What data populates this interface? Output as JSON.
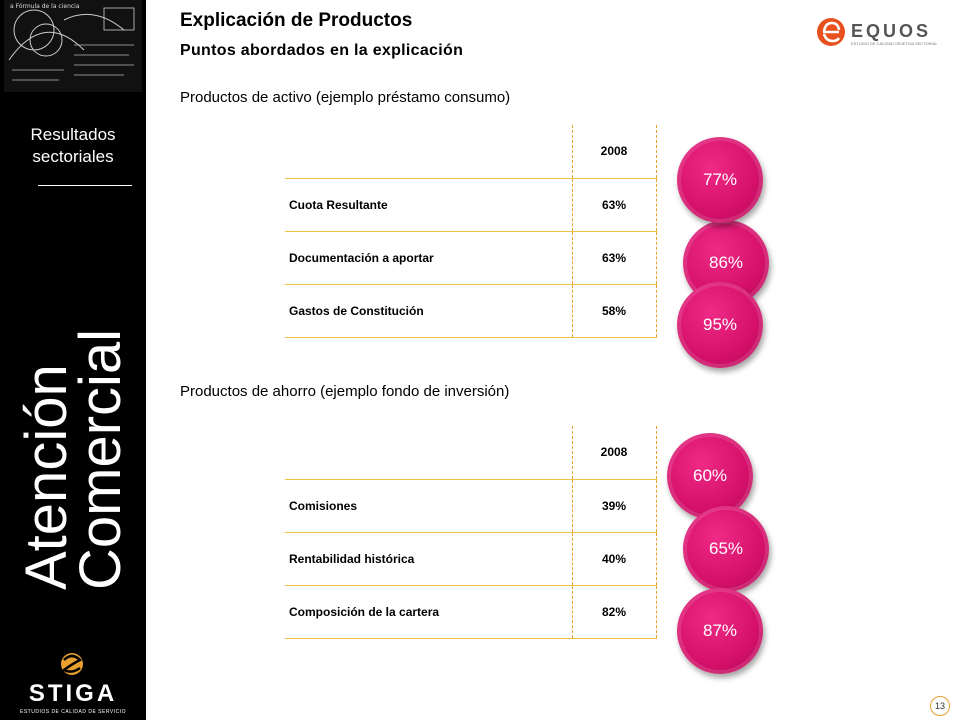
{
  "sidebar": {
    "section_label_line1": "Resultados",
    "section_label_line2": "sectoriales",
    "vertical_title_line1": "Atención",
    "vertical_title_line2": "Comercial",
    "logo_text": "STIGA",
    "logo_subtext": "ESTUDIOS DE CALIDAD DE SERVICIO",
    "chalk_text": "a Fórmula de la ciencia"
  },
  "header": {
    "title": "Explicación de Productos",
    "subtitle": "Puntos abordados en la explicación",
    "brand_name": "EQUOS",
    "brand_tagline": "ESTUDIO DE CALIDAD OBJETIVA SECTORIAL",
    "brand_color": "#e8501e"
  },
  "active_products": {
    "heading": "Productos de activo (ejemplo préstamo consumo)",
    "year_header": "2008",
    "rows": [
      {
        "label": "Cuota Resultante",
        "value": "63%"
      },
      {
        "label": "Documentación a aportar",
        "value": "63%"
      },
      {
        "label": "Gastos de Constitución",
        "value": "58%"
      }
    ],
    "bubbles": [
      "77%",
      "86%",
      "95%"
    ]
  },
  "savings_products": {
    "heading": "Productos de ahorro (ejemplo fondo de inversión)",
    "year_header": "2008",
    "rows": [
      {
        "label": "Comisiones",
        "value": "39%"
      },
      {
        "label": "Rentabilidad histórica",
        "value": "40%"
      },
      {
        "label": "Composición de la cartera",
        "value": "82%"
      }
    ],
    "bubbles": [
      "60%",
      "65%",
      "87%"
    ]
  },
  "bubble_color": "#d4106a",
  "page_number": "13"
}
